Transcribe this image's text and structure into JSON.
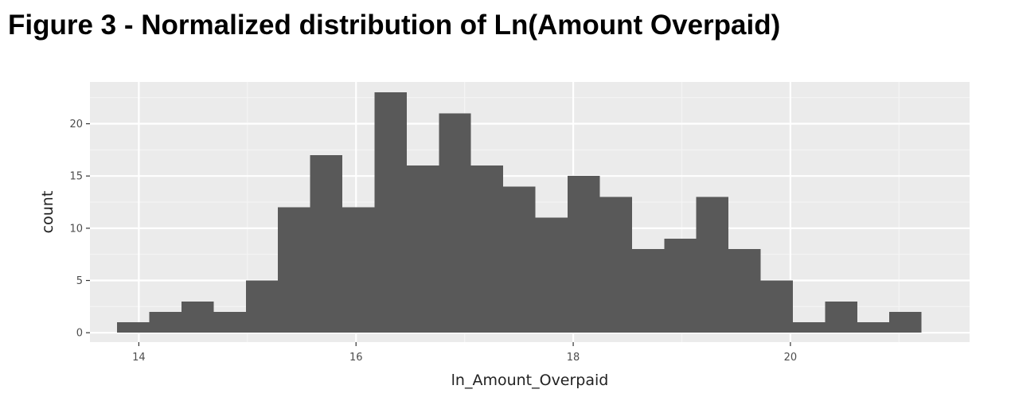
{
  "figure_title": "Figure 3 - Normalized distribution of Ln(Amount Overpaid)",
  "chart_data": {
    "type": "bar",
    "subtype": "histogram",
    "xlabel": "ln_Amount_Overpaid",
    "ylabel": "count",
    "xlim": [
      13.55,
      21.65
    ],
    "ylim": [
      -0.9,
      24.0
    ],
    "x_ticks": [
      14,
      16,
      18,
      20
    ],
    "x_tick_labels": [
      "14",
      "16",
      "18",
      "20"
    ],
    "y_ticks": [
      0,
      5,
      10,
      15,
      20
    ],
    "y_tick_labels": [
      "0",
      "5",
      "10",
      "15",
      "20"
    ],
    "bin_width": 0.2963,
    "bin_edges_start": 13.8,
    "values": [
      1,
      2,
      3,
      2,
      5,
      12,
      17,
      12,
      23,
      16,
      21,
      16,
      14,
      11,
      15,
      13,
      8,
      9,
      13,
      8,
      5,
      1,
      3,
      1,
      2
    ],
    "grid": true,
    "colors": {
      "panel_background": "#ebebeb",
      "grid_major": "#ffffff",
      "grid_minor": "#f4f4f4",
      "bar_fill": "#595959",
      "tick_mark": "#333333"
    }
  }
}
